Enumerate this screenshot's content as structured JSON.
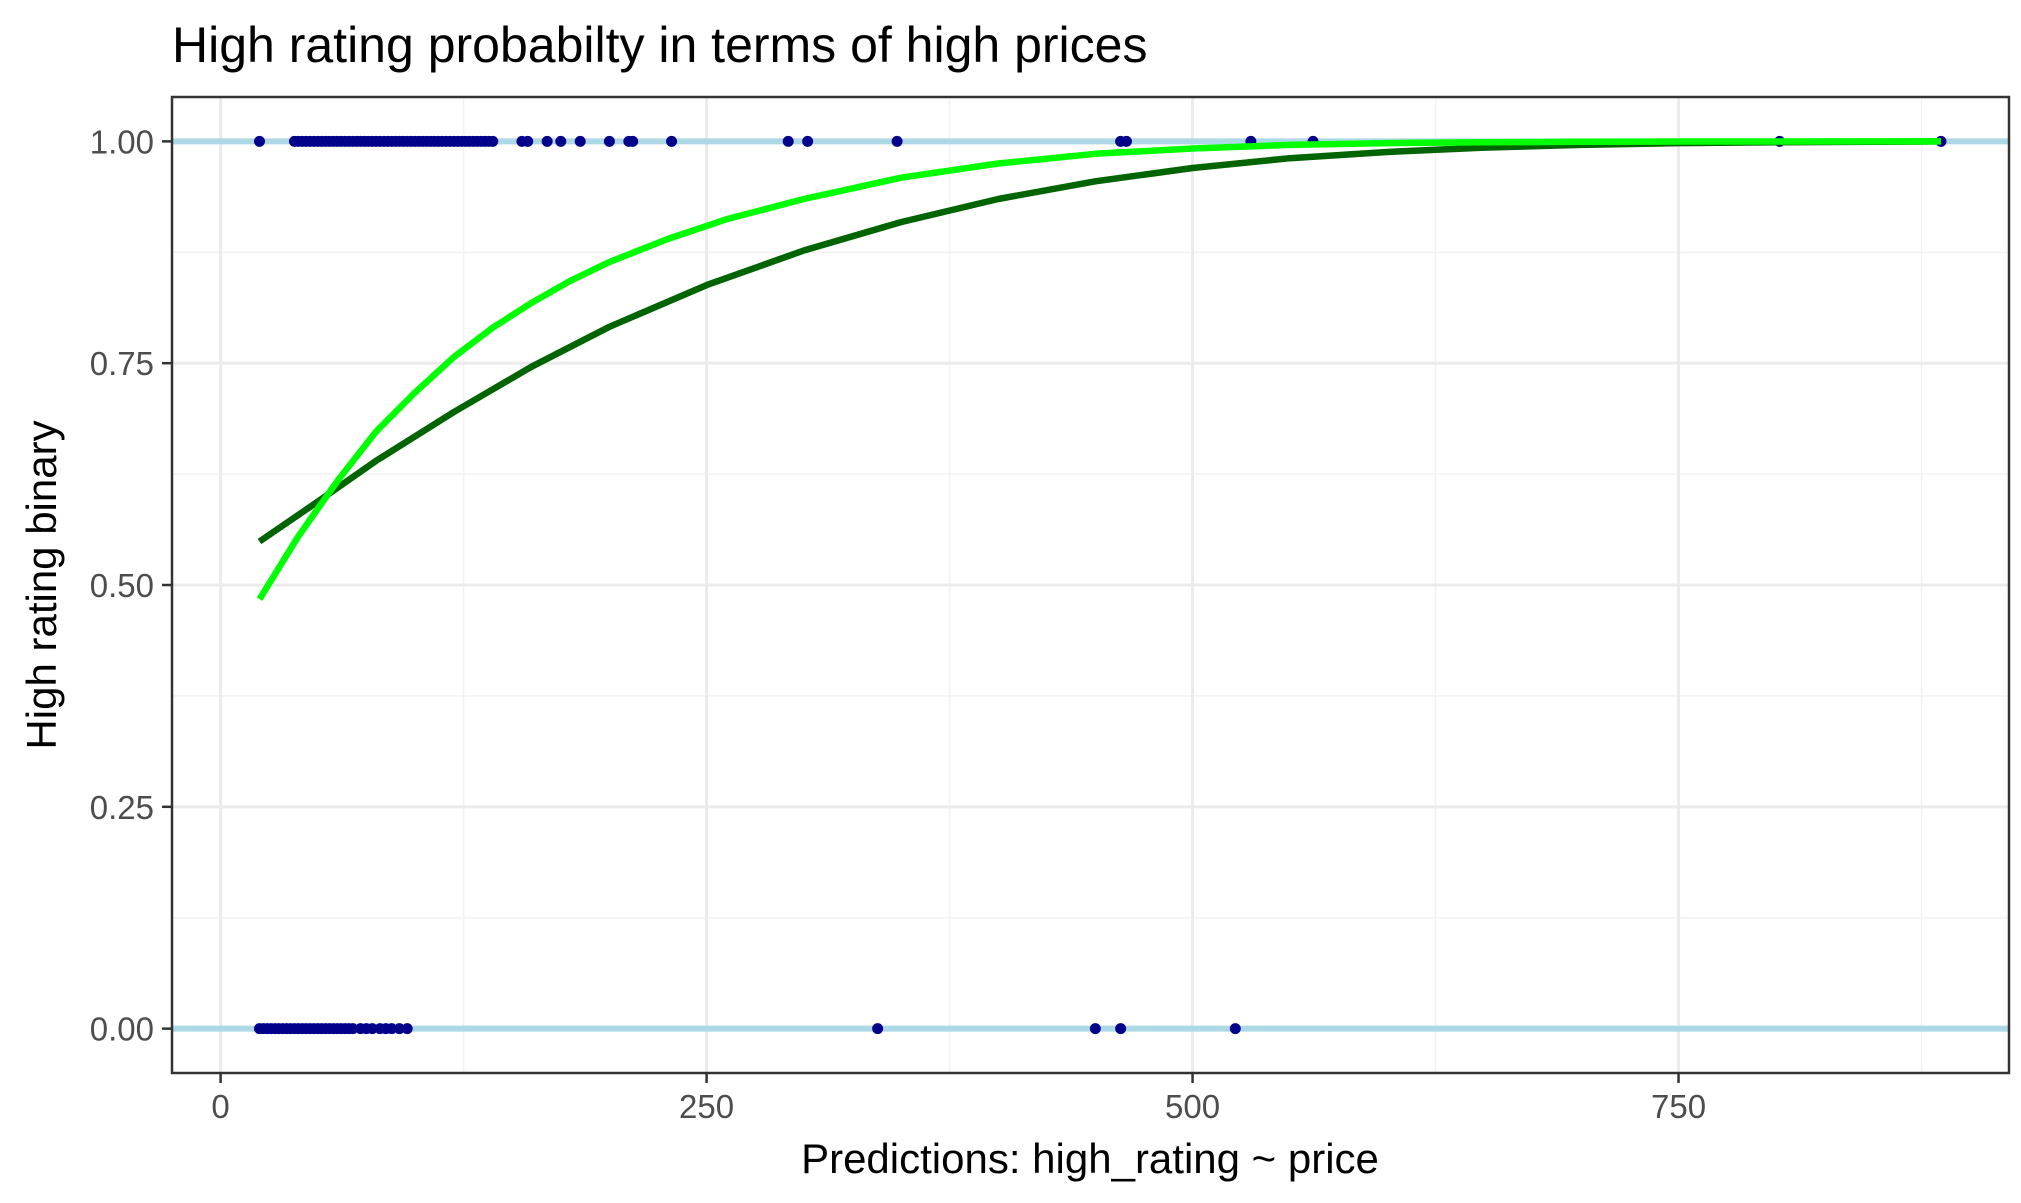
{
  "chart_data": {
    "type": "scatter",
    "title": "High rating probabilty in terms of high prices",
    "xlabel": "Predictions: high_rating ~ price",
    "ylabel": "High rating binary",
    "xlim": [
      -25,
      920
    ],
    "ylim": [
      -0.05,
      1.05
    ],
    "x_ticks": [
      0,
      250,
      500,
      750
    ],
    "x_tick_labels": [
      "0",
      "250",
      "500",
      "750"
    ],
    "x_minor_ticks": [
      125,
      375,
      625,
      875
    ],
    "y_ticks": [
      0,
      0.25,
      0.5,
      0.75,
      1.0
    ],
    "y_tick_labels": [
      "0.00",
      "0.25",
      "0.50",
      "0.75",
      "1.00"
    ],
    "y_minor_ticks": [
      0.125,
      0.375,
      0.625,
      0.875
    ],
    "grid": true,
    "reference_lines": {
      "y": [
        0,
        1
      ],
      "color": "#add8e6"
    },
    "points": {
      "color": "#00008b",
      "y1_x": [
        20,
        38,
        40,
        42,
        44,
        46,
        48,
        50,
        52,
        54,
        56,
        58,
        60,
        62,
        64,
        66,
        68,
        70,
        72,
        74,
        76,
        78,
        80,
        82,
        84,
        86,
        88,
        90,
        92,
        94,
        96,
        98,
        100,
        102,
        104,
        106,
        108,
        110,
        112,
        114,
        116,
        118,
        120,
        122,
        124,
        126,
        128,
        130,
        132,
        134,
        136,
        138,
        140,
        155,
        158,
        168,
        175,
        185,
        200,
        210,
        212,
        232,
        292,
        302,
        348,
        463,
        466,
        530,
        562,
        802,
        885
      ],
      "y0_x": [
        20,
        22,
        24,
        26,
        28,
        30,
        32,
        34,
        36,
        38,
        40,
        42,
        44,
        46,
        48,
        50,
        52,
        54,
        56,
        58,
        60,
        62,
        64,
        66,
        68,
        72,
        75,
        78,
        82,
        85,
        88,
        92,
        96,
        338,
        450,
        463,
        522
      ]
    },
    "series": [
      {
        "color": "#006400",
        "x": [
          20,
          50,
          80,
          120,
          160,
          200,
          250,
          300,
          350,
          400,
          450,
          500,
          550,
          600,
          650,
          700,
          750,
          800,
          885
        ],
        "y": [
          0.549,
          0.594,
          0.64,
          0.695,
          0.746,
          0.791,
          0.838,
          0.877,
          0.909,
          0.935,
          0.955,
          0.97,
          0.981,
          0.988,
          0.993,
          0.996,
          0.998,
          0.999,
          1.0
        ]
      },
      {
        "color": "#00ff00",
        "x": [
          20,
          40,
          60,
          80,
          100,
          120,
          140,
          160,
          180,
          200,
          230,
          260,
          300,
          350,
          400,
          450,
          500,
          550,
          600,
          650,
          700,
          750,
          800,
          885
        ],
        "y": [
          0.484,
          0.555,
          0.617,
          0.673,
          0.717,
          0.757,
          0.79,
          0.818,
          0.843,
          0.864,
          0.89,
          0.912,
          0.935,
          0.959,
          0.975,
          0.986,
          0.992,
          0.996,
          0.998,
          0.999,
          0.9995,
          0.9998,
          0.9999,
          1.0
        ]
      }
    ]
  }
}
